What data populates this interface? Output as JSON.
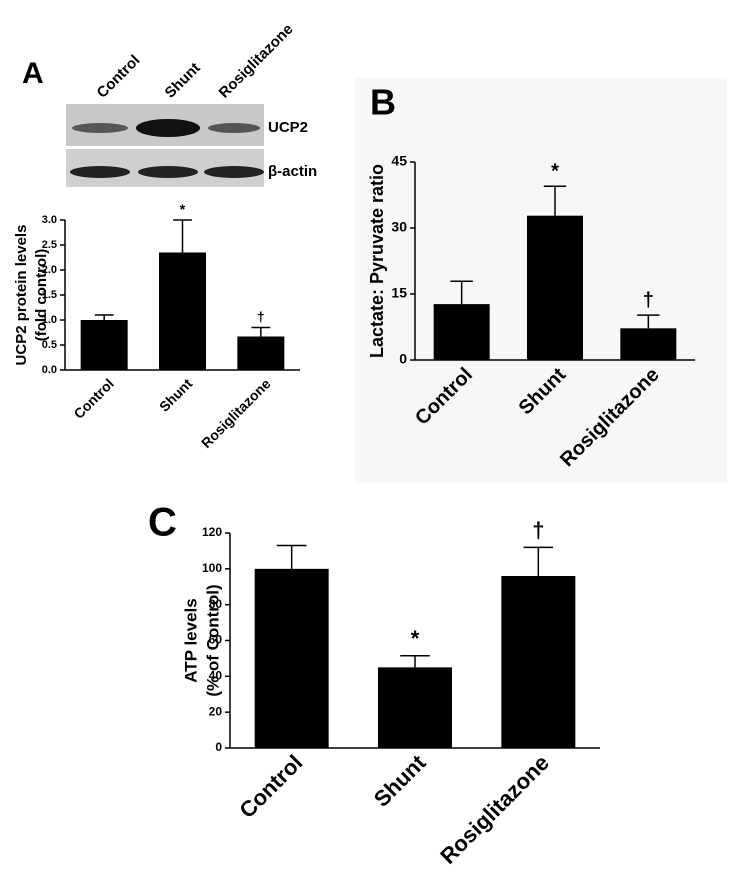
{
  "chart_data": [
    {
      "type": "bar",
      "panel": "A",
      "blot": {
        "lanes": [
          "Control",
          "Shunt",
          "Rosiglitazone"
        ],
        "rows": [
          "UCP2",
          "β-actin"
        ]
      },
      "ylabel": [
        "UCP2 protein levels",
        "(fold control)"
      ],
      "categories": [
        "Control",
        "Shunt",
        "Rosiglitazone"
      ],
      "values": [
        1.0,
        2.35,
        0.67
      ],
      "errors": [
        0.1,
        0.65,
        0.18
      ],
      "bar_annotations": [
        null,
        "*",
        "†"
      ],
      "color": "#000000",
      "ylim": [
        0,
        3.0
      ],
      "yticks": [
        {
          "value": 0,
          "label": "0.0"
        },
        {
          "value": 0.5,
          "label": "0.5"
        },
        {
          "value": 1,
          "label": "1.0"
        },
        {
          "value": 1.5,
          "label": "1.5"
        },
        {
          "value": 2,
          "label": "2.0"
        },
        {
          "value": 2.5,
          "label": "2.5"
        },
        {
          "value": 3,
          "label": "3.0"
        }
      ]
    },
    {
      "type": "bar",
      "panel": "B",
      "ylabel": [
        "Lactate: Pyruvate ratio"
      ],
      "categories": [
        "Control",
        "Shunt",
        "Rosiglitazone"
      ],
      "values": [
        12.7,
        32.8,
        7.2
      ],
      "errors": [
        5.2,
        6.7,
        3.0
      ],
      "bar_annotations": [
        null,
        "*",
        "†"
      ],
      "color": "#000000",
      "ylim": [
        0,
        45
      ],
      "yticks": [
        0,
        15,
        30,
        45
      ]
    },
    {
      "type": "bar",
      "panel": "C",
      "ylabel": [
        "ATP levels",
        "(% of Control)"
      ],
      "categories": [
        "Control",
        "Shunt",
        "Rosiglitazone"
      ],
      "values": [
        100,
        45,
        96
      ],
      "errors": [
        13,
        6.5,
        16
      ],
      "bar_annotations": [
        null,
        "*",
        "†"
      ],
      "color": "#000000",
      "ylim": [
        0,
        120
      ],
      "yticks": [
        0,
        20,
        40,
        60,
        80,
        100,
        120
      ]
    }
  ]
}
